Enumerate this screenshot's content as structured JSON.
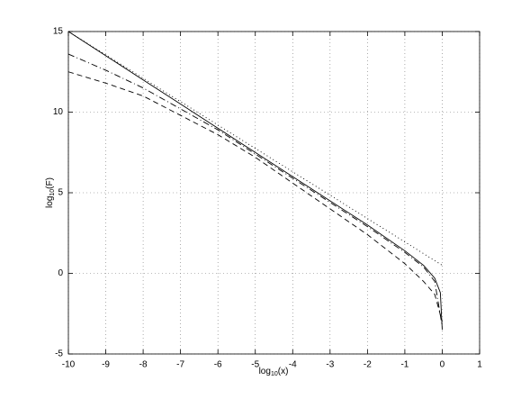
{
  "chart_data": {
    "type": "line",
    "xlabel": [
      "log",
      "10",
      "(x)"
    ],
    "ylabel": [
      "log",
      "10",
      "(F)"
    ],
    "xlim": [
      -10,
      1
    ],
    "xticks": [
      -10,
      -9,
      -8,
      -7,
      -6,
      -5,
      -4,
      -3,
      -2,
      -1,
      0,
      1
    ],
    "ylim": [
      -5,
      15
    ],
    "yticks": [
      -5,
      0,
      5,
      10,
      15
    ],
    "grid": true,
    "series": [
      {
        "color": "#000000",
        "dash": "solid",
        "x": [
          -10,
          -9,
          -8,
          -7,
          -6,
          -5,
          -4,
          -3,
          -2,
          -1,
          -0.5,
          -0.2,
          -0.05,
          0
        ],
        "values": [
          15,
          13.5,
          12,
          10.5,
          9,
          7.5,
          6,
          4.5,
          3,
          1.4,
          0.5,
          -0.3,
          -1.2,
          -3.5
        ]
      },
      {
        "color": "#000000",
        "dash": "dotted",
        "x": [
          -10,
          0
        ],
        "values": [
          15,
          0.5
        ]
      },
      {
        "color": "#000000",
        "dash": "dashdot",
        "x": [
          -10,
          -9,
          -8,
          -7,
          -6,
          -5,
          -4,
          -3,
          -2,
          -1,
          -0.5,
          -0.2,
          0
        ],
        "values": [
          13.6,
          12.6,
          11.5,
          10.2,
          8.9,
          7.4,
          5.9,
          4.4,
          2.9,
          1.3,
          0.4,
          -0.5,
          -3.3
        ]
      },
      {
        "color": "#000000",
        "dash": "dashed",
        "x": [
          -10,
          -9,
          -8,
          -7,
          -6,
          -5,
          -4,
          -3,
          -2,
          -1,
          -0.5,
          -0.2,
          0
        ],
        "values": [
          12.5,
          11.8,
          11,
          9.8,
          8.6,
          7.2,
          5.6,
          4.0,
          2.4,
          0.6,
          -0.5,
          -1.3,
          -3
        ]
      }
    ]
  }
}
